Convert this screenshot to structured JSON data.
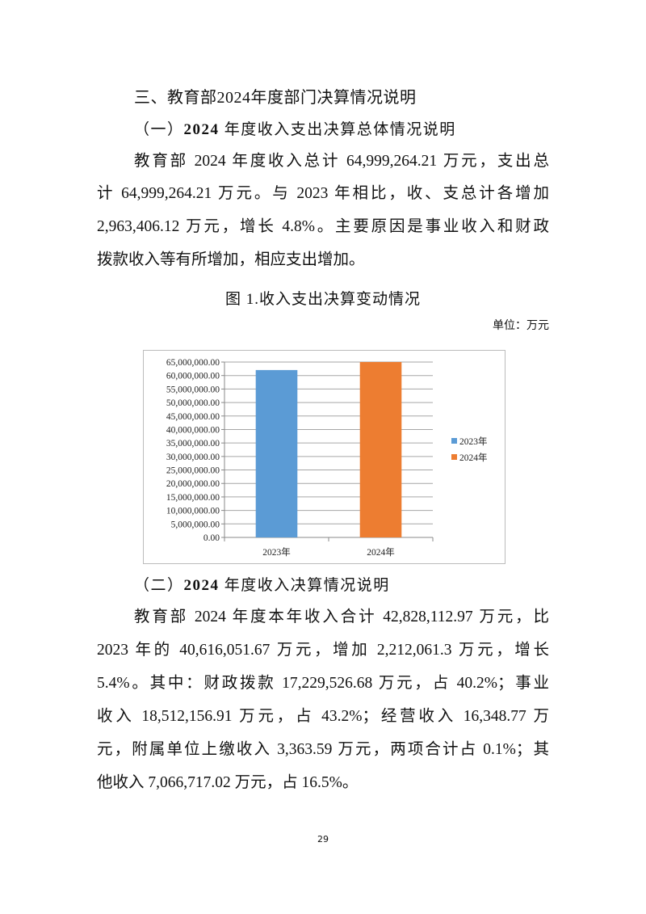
{
  "section_title": "三、教育部2024年度部门决算情况说明",
  "subsection1": {
    "prefix": "（一）",
    "bold": "2024",
    "rest": "年度收入支出决算总体情况说明"
  },
  "paragraph1": [
    "教育部 2024 年度收入总计 64,999,264.21 万元，支出总",
    "计 64,999,264.21 万元。与 2023 年相比，收、支总计各增加",
    "2,963,406.12 万元，增长 4.8%。主要原因是事业收入和财政",
    "拨款收入等有所增加，相应支出增加。"
  ],
  "figure_caption": "图 1.收入支出决算变动情况",
  "unit_label": "单位：万元",
  "chart_data": {
    "type": "bar",
    "categories": [
      "2023年",
      "2024年"
    ],
    "series": [
      {
        "name": "2023年",
        "values": [
          62035858.09,
          null
        ],
        "color": "#5B9BD5"
      },
      {
        "name": "2024年",
        "values": [
          null,
          64999264.21
        ],
        "color": "#ED7D31"
      }
    ],
    "ylim": [
      0,
      65000000
    ],
    "yticks": [
      0,
      5000000,
      10000000,
      15000000,
      20000000,
      25000000,
      30000000,
      35000000,
      40000000,
      45000000,
      50000000,
      55000000,
      60000000,
      65000000
    ],
    "ytick_labels": [
      "0.00",
      "5,000,000.00",
      "10,000,000.00",
      "15,000,000.00",
      "20,000,000.00",
      "25,000,000.00",
      "30,000,000.00",
      "35,000,000.00",
      "40,000,000.00",
      "45,000,000.00",
      "50,000,000.00",
      "55,000,000.00",
      "60,000,000.00",
      "65,000,000.00"
    ],
    "grid": true,
    "legend": "right",
    "title": "",
    "xlabel": "",
    "ylabel": ""
  },
  "subsection2": {
    "prefix": "（二）",
    "bold": "2024",
    "rest": "年度收入决算情况说明"
  },
  "paragraph2": [
    "教育部 2024 年度本年收入合计 42,828,112.97 万元，比",
    "2023 年的 40,616,051.67 万元，增加 2,212,061.3 万元，增长",
    "5.4%。其中：财政拨款 17,229,526.68 万元，占 40.2%；事业",
    "收入 18,512,156.91 万元，占 43.2%；经营收入 16,348.77 万",
    "元，附属单位上缴收入 3,363.59 万元，两项合计占 0.1%；其",
    "他收入 7,066,717.02 万元，占 16.5%。"
  ],
  "page_number": "29"
}
